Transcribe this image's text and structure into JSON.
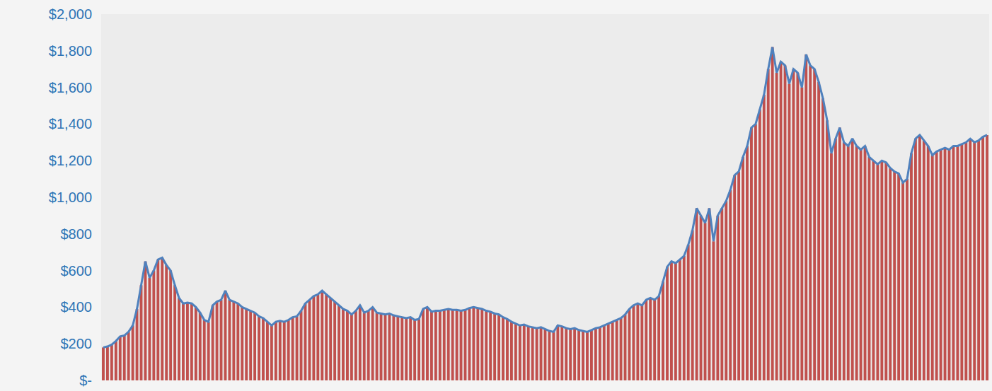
{
  "chart_data": {
    "type": "bar",
    "categories": [
      null,
      null,
      null,
      null,
      null,
      null,
      null,
      null,
      null,
      null,
      null,
      null,
      null,
      null,
      null,
      null,
      null,
      null,
      null,
      null,
      null,
      null,
      null,
      null,
      null,
      null,
      null,
      null,
      null,
      null,
      null,
      null,
      null,
      null,
      null,
      null,
      null,
      null,
      null,
      null,
      null,
      null,
      null,
      null,
      null,
      null,
      null,
      null,
      null,
      null,
      null,
      null,
      null,
      null,
      null,
      null,
      null,
      null,
      null,
      null,
      null,
      null,
      null,
      null,
      null,
      null,
      null,
      null,
      null,
      null,
      null,
      null,
      null,
      null,
      null,
      null,
      null,
      null,
      null,
      null,
      null,
      null,
      null,
      null,
      null,
      null,
      null,
      null,
      null,
      null,
      null,
      null,
      null,
      null,
      null,
      null,
      null,
      null,
      null,
      null,
      null,
      null,
      null,
      null,
      null,
      null,
      null,
      null,
      null,
      null,
      null,
      null,
      null,
      null,
      null,
      null,
      null,
      null,
      null,
      null,
      null,
      null,
      null,
      null,
      null,
      null,
      null,
      null,
      null,
      null,
      null,
      null,
      null,
      null,
      null,
      null,
      null,
      null,
      null,
      null,
      null,
      null,
      null,
      null,
      null,
      null,
      null,
      null,
      null,
      null,
      null,
      null,
      null,
      null,
      null,
      null,
      null,
      null,
      null,
      null,
      null,
      null,
      null,
      null,
      null,
      null,
      null,
      null,
      null,
      null,
      null,
      null,
      null,
      null,
      null,
      null,
      null,
      null,
      null,
      null,
      null,
      null,
      null,
      null,
      null,
      null,
      null,
      null,
      null,
      null,
      null,
      null,
      null,
      null,
      null,
      null,
      null,
      null,
      null,
      null,
      null,
      null,
      null,
      null,
      null,
      null,
      null,
      null,
      null,
      null,
      null
    ],
    "series": [
      {
        "type": "bar",
        "color": "#c0504d",
        "values": [
          180,
          185,
          195,
          215,
          240,
          245,
          265,
          300,
          390,
          520,
          650,
          560,
          600,
          660,
          670,
          630,
          600,
          520,
          450,
          420,
          425,
          420,
          400,
          370,
          330,
          320,
          410,
          430,
          440,
          490,
          440,
          430,
          420,
          400,
          390,
          380,
          370,
          350,
          340,
          320,
          300,
          320,
          325,
          320,
          330,
          345,
          350,
          380,
          420,
          440,
          460,
          470,
          490,
          470,
          450,
          430,
          410,
          390,
          380,
          360,
          380,
          410,
          370,
          380,
          400,
          370,
          365,
          360,
          365,
          355,
          350,
          345,
          340,
          345,
          330,
          335,
          390,
          400,
          375,
          380,
          380,
          385,
          390,
          385,
          385,
          380,
          385,
          395,
          400,
          395,
          390,
          380,
          375,
          365,
          360,
          345,
          335,
          320,
          310,
          300,
          305,
          295,
          290,
          285,
          290,
          280,
          270,
          265,
          300,
          295,
          285,
          280,
          285,
          275,
          270,
          265,
          275,
          285,
          290,
          300,
          310,
          320,
          330,
          340,
          360,
          390,
          410,
          420,
          410,
          440,
          450,
          440,
          460,
          540,
          620,
          650,
          640,
          660,
          680,
          740,
          820,
          940,
          900,
          860,
          940,
          760,
          900,
          940,
          980,
          1040,
          1120,
          1140,
          1220,
          1280,
          1380,
          1400,
          1480,
          1560,
          1700,
          1820,
          1680,
          1740,
          1720,
          1620,
          1700,
          1680,
          1600,
          1780,
          1720,
          1700,
          1630,
          1540,
          1420,
          1240,
          1320,
          1380,
          1300,
          1280,
          1320,
          1280,
          1260,
          1280,
          1220,
          1200,
          1180,
          1200,
          1190,
          1160,
          1140,
          1130,
          1080,
          1100,
          1240,
          1320,
          1340,
          1310,
          1280,
          1230,
          1250,
          1260,
          1270,
          1260,
          1280,
          1280,
          1290,
          1300,
          1320,
          1300,
          1310,
          1330,
          1340
        ]
      },
      {
        "type": "line",
        "color": "#4f81bd",
        "values": [
          180,
          185,
          195,
          215,
          240,
          245,
          265,
          300,
          390,
          520,
          650,
          560,
          600,
          660,
          670,
          630,
          600,
          520,
          450,
          420,
          425,
          420,
          400,
          370,
          330,
          320,
          410,
          430,
          440,
          490,
          440,
          430,
          420,
          400,
          390,
          380,
          370,
          350,
          340,
          320,
          300,
          320,
          325,
          320,
          330,
          345,
          350,
          380,
          420,
          440,
          460,
          470,
          490,
          470,
          450,
          430,
          410,
          390,
          380,
          360,
          380,
          410,
          370,
          380,
          400,
          370,
          365,
          360,
          365,
          355,
          350,
          345,
          340,
          345,
          330,
          335,
          390,
          400,
          375,
          380,
          380,
          385,
          390,
          385,
          385,
          380,
          385,
          395,
          400,
          395,
          390,
          380,
          375,
          365,
          360,
          345,
          335,
          320,
          310,
          300,
          305,
          295,
          290,
          285,
          290,
          280,
          270,
          265,
          300,
          295,
          285,
          280,
          285,
          275,
          270,
          265,
          275,
          285,
          290,
          300,
          310,
          320,
          330,
          340,
          360,
          390,
          410,
          420,
          410,
          440,
          450,
          440,
          460,
          540,
          620,
          650,
          640,
          660,
          680,
          740,
          820,
          940,
          900,
          860,
          940,
          760,
          900,
          940,
          980,
          1040,
          1120,
          1140,
          1220,
          1280,
          1380,
          1400,
          1480,
          1560,
          1700,
          1820,
          1680,
          1740,
          1720,
          1620,
          1700,
          1680,
          1600,
          1780,
          1720,
          1700,
          1630,
          1540,
          1420,
          1240,
          1320,
          1380,
          1300,
          1280,
          1320,
          1280,
          1260,
          1280,
          1220,
          1200,
          1180,
          1200,
          1190,
          1160,
          1140,
          1130,
          1080,
          1100,
          1240,
          1320,
          1340,
          1310,
          1280,
          1230,
          1250,
          1260,
          1270,
          1260,
          1280,
          1280,
          1290,
          1300,
          1320,
          1300,
          1310,
          1330,
          1340
        ]
      }
    ],
    "ylim": [
      0,
      2000
    ],
    "yticks": [
      {
        "value": 0,
        "label": "$-"
      },
      {
        "value": 200,
        "label": "$200"
      },
      {
        "value": 400,
        "label": "$400"
      },
      {
        "value": 600,
        "label": "$600"
      },
      {
        "value": 800,
        "label": "$800"
      },
      {
        "value": 1000,
        "label": "$1,000"
      },
      {
        "value": 1200,
        "label": "$1,200"
      },
      {
        "value": 1400,
        "label": "$1,400"
      },
      {
        "value": 1600,
        "label": "$1,600"
      },
      {
        "value": 1800,
        "label": "$1,800"
      },
      {
        "value": 2000,
        "label": "$2,000"
      }
    ],
    "grid": false,
    "tick_labels": "y"
  }
}
